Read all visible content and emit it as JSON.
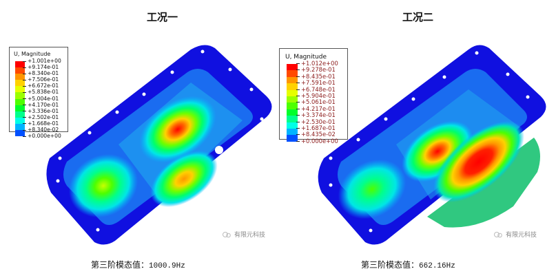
{
  "panels": [
    {
      "title": "工况一",
      "caption_prefix": "第三阶模态值：",
      "caption_value": "1000.9Hz",
      "legend": {
        "title": "U, Magnitude",
        "label_color": "#111111",
        "values": [
          "+1.001e+00",
          "+9.174e-01",
          "+8.340e-01",
          "+7.506e-01",
          "+6.672e-01",
          "+5.838e-01",
          "+5.004e-01",
          "+4.170e-01",
          "+3.336e-01",
          "+2.502e-01",
          "+1.668e-01",
          "+8.340e-02",
          "+0.000e+00"
        ]
      },
      "watermark": "有限元科技",
      "peak_locations": [
        "upper-center (red)",
        "lower-center (orange)",
        "left (green-yellow)"
      ]
    },
    {
      "title": "工况二",
      "caption_prefix": "第三阶模态值：",
      "caption_value": "662.16Hz",
      "legend": {
        "title": "U, Magnitude",
        "label_color": "#8b1a1a",
        "values": [
          "+1.012e+00",
          "+9.278e-01",
          "+8.435e-01",
          "+7.591e-01",
          "+6.748e-01",
          "+5.904e-01",
          "+5.061e-01",
          "+4.217e-01",
          "+3.374e-01",
          "+2.530e-01",
          "+1.687e-01",
          "+8.435e-02",
          "+0.000e+00"
        ]
      },
      "watermark": "有限元科技",
      "peak_locations": [
        "center-left (red)",
        "center-right elongated (red)",
        "left (green)"
      ]
    }
  ],
  "colormap": [
    "#ff0000",
    "#ff4a00",
    "#ff9600",
    "#ffd200",
    "#e6ff00",
    "#9bff00",
    "#4dff00",
    "#00ff2a",
    "#00ff8c",
    "#00ffe6",
    "#00b4ff",
    "#0050ff",
    "#0000ff"
  ]
}
